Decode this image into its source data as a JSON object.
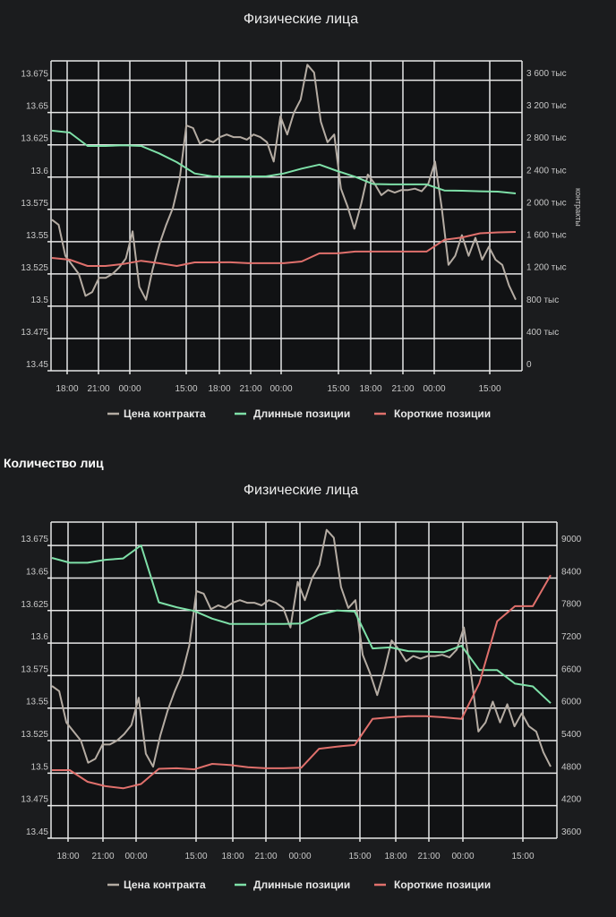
{
  "section_title": "Количество лиц",
  "colors": {
    "price": "#b5aca3",
    "long": "#7ee0a8",
    "short": "#e0706c",
    "grid": "#e6e6e6",
    "plot_bg": "#111214"
  },
  "chart_data": [
    {
      "type": "line",
      "title": "Физические лица",
      "ylabel_right": "контракты",
      "x_tick_labels": [
        "18:00",
        "21:00",
        "00:00",
        "15:00",
        "18:00",
        "21:00",
        "00:00",
        "15:00",
        "18:00",
        "21:00",
        "00:00",
        "15:00"
      ],
      "y_left_ticks": [
        "13.45",
        "13.475",
        "13.5",
        "13.525",
        "13.55",
        "13.575",
        "13.6",
        "13.625",
        "13.65",
        "13.675"
      ],
      "y_left_lim": [
        13.45,
        13.69
      ],
      "y_right_ticks": [
        {
          "v": 0,
          "label": "0"
        },
        {
          "v": 400,
          "label": "400 тыс"
        },
        {
          "v": 800,
          "label": "800 тыс"
        },
        {
          "v": 1200,
          "label": "1 200 тыс"
        },
        {
          "v": 1600,
          "label": "1 600 тыс"
        },
        {
          "v": 2000,
          "label": "2 000 тыс"
        },
        {
          "v": 2400,
          "label": "2 400 тыс"
        },
        {
          "v": 2800,
          "label": "2 800 тыс"
        },
        {
          "v": 3200,
          "label": "3 200 тыс"
        },
        {
          "v": 3600,
          "label": "3 600 тыс"
        }
      ],
      "y_right_lim": [
        0,
        3833
      ],
      "legend": [
        "Цена контракта",
        "Длинные позиции",
        "Короткие позиции"
      ],
      "grid": true,
      "legend_position": "bottom-center",
      "series": [
        {
          "name": "Цена контракта",
          "axis": "left",
          "key": "price",
          "values": [
            13.567,
            13.563,
            13.539,
            13.532,
            13.525,
            13.508,
            13.511,
            13.522,
            13.522,
            13.525,
            13.53,
            13.537,
            13.558,
            13.515,
            13.505,
            13.529,
            13.548,
            13.563,
            13.576,
            13.598,
            13.64,
            13.638,
            13.626,
            13.629,
            13.627,
            13.631,
            13.633,
            13.631,
            13.631,
            13.629,
            13.633,
            13.631,
            13.627,
            13.612,
            13.647,
            13.633,
            13.65,
            13.66,
            13.687,
            13.681,
            13.643,
            13.627,
            13.633,
            13.591,
            13.577,
            13.56,
            13.579,
            13.602,
            13.595,
            13.586,
            13.59,
            13.588,
            13.59,
            13.59,
            13.591,
            13.589,
            13.595,
            13.612,
            13.576,
            13.532,
            13.539,
            13.555,
            13.539,
            13.553,
            13.536,
            13.546,
            13.536,
            13.532,
            13.516,
            13.505
          ]
        },
        {
          "name": "Длинные позиции",
          "axis": "right",
          "key": "long",
          "values": [
            2970,
            2947,
            2781,
            2781,
            2790,
            2781,
            2690,
            2580,
            2440,
            2404,
            2404,
            2404,
            2404,
            2440,
            2500,
            2550,
            2470,
            2400,
            2310,
            2305,
            2305,
            2305,
            2230,
            2227,
            2220,
            2216,
            2194
          ]
        },
        {
          "name": "Короткие позиции",
          "axis": "right",
          "key": "short",
          "values": [
            1396,
            1374,
            1296,
            1296,
            1320,
            1360,
            1330,
            1296,
            1340,
            1340,
            1341,
            1330,
            1330,
            1330,
            1352,
            1452,
            1452,
            1474,
            1474,
            1474,
            1474,
            1474,
            1620,
            1650,
            1700,
            1712,
            1717
          ]
        }
      ]
    },
    {
      "type": "line",
      "title": "Физические лица",
      "x_tick_labels": [
        "18:00",
        "21:00",
        "00:00",
        "15:00",
        "18:00",
        "21:00",
        "00:00",
        "15:00",
        "18:00",
        "21:00",
        "00:00",
        "15:00"
      ],
      "y_left_ticks": [
        "13.45",
        "13.475",
        "13.5",
        "13.525",
        "13.55",
        "13.575",
        "13.6",
        "13.625",
        "13.65",
        "13.675"
      ],
      "y_left_lim": [
        13.45,
        13.693
      ],
      "y_right_ticks": [
        {
          "v": 3600,
          "label": "3600"
        },
        {
          "v": 4200,
          "label": "4200"
        },
        {
          "v": 4800,
          "label": "4800"
        },
        {
          "v": 5400,
          "label": "5400"
        },
        {
          "v": 6000,
          "label": "6000"
        },
        {
          "v": 6600,
          "label": "6600"
        },
        {
          "v": 7200,
          "label": "7200"
        },
        {
          "v": 7800,
          "label": "7800"
        },
        {
          "v": 8400,
          "label": "8400"
        },
        {
          "v": 9000,
          "label": "9000"
        }
      ],
      "y_right_lim": [
        3600,
        9430
      ],
      "legend": [
        "Цена контракта",
        "Длинные позиции",
        "Короткие позиции"
      ],
      "grid": true,
      "legend_position": "bottom-center",
      "series": [
        {
          "name": "Цена контракта",
          "axis": "left",
          "key": "price",
          "values": [
            13.567,
            13.563,
            13.539,
            13.532,
            13.525,
            13.508,
            13.511,
            13.522,
            13.522,
            13.525,
            13.53,
            13.537,
            13.558,
            13.515,
            13.505,
            13.529,
            13.548,
            13.563,
            13.576,
            13.598,
            13.64,
            13.638,
            13.626,
            13.629,
            13.627,
            13.631,
            13.633,
            13.631,
            13.631,
            13.629,
            13.633,
            13.631,
            13.627,
            13.612,
            13.647,
            13.633,
            13.65,
            13.66,
            13.687,
            13.681,
            13.643,
            13.627,
            13.633,
            13.591,
            13.577,
            13.56,
            13.579,
            13.602,
            13.595,
            13.586,
            13.59,
            13.588,
            13.59,
            13.59,
            13.591,
            13.589,
            13.595,
            13.612,
            13.576,
            13.532,
            13.539,
            13.555,
            13.539,
            13.553,
            13.536,
            13.546,
            13.536,
            13.532,
            13.516,
            13.505
          ]
        },
        {
          "name": "Длинные позиции",
          "axis": "right",
          "key": "long",
          "values": [
            8770,
            8680,
            8680,
            8735,
            8760,
            9000,
            7950,
            7860,
            7790,
            7650,
            7550,
            7550,
            7550,
            7550,
            7560,
            7720,
            7800,
            7780,
            7100,
            7120,
            7050,
            7040,
            7030,
            7150,
            6700,
            6700,
            6450,
            6400,
            6090
          ]
        },
        {
          "name": "Короткие позиции",
          "axis": "right",
          "key": "short",
          "values": [
            4855,
            4855,
            4640,
            4560,
            4520,
            4600,
            4880,
            4890,
            4870,
            4970,
            4950,
            4910,
            4890,
            4890,
            4900,
            5250,
            5290,
            5320,
            5800,
            5830,
            5850,
            5850,
            5830,
            5800,
            6460,
            7600,
            7880,
            7880,
            8450
          ]
        }
      ]
    }
  ]
}
